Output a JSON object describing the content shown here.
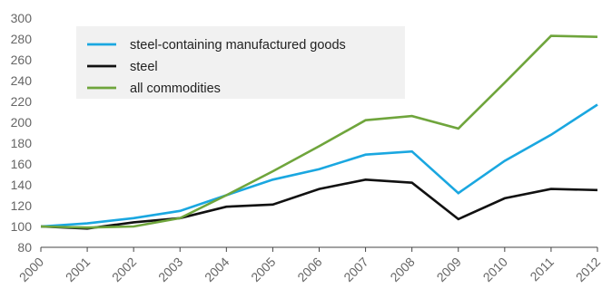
{
  "chart_data": {
    "type": "line",
    "title": "",
    "xlabel": "",
    "ylabel": "",
    "x": [
      "2000",
      "2001",
      "2002",
      "2003",
      "2004",
      "2005",
      "2006",
      "2007",
      "2008",
      "2009",
      "2010",
      "2011",
      "2012"
    ],
    "ylim": [
      80,
      300
    ],
    "yticks": [
      80,
      100,
      120,
      140,
      160,
      180,
      200,
      220,
      240,
      260,
      280,
      300
    ],
    "grid": false,
    "legend_position": "top-left",
    "series": [
      {
        "name": "steel-containing manufactured goods",
        "color": "#1aa7e0",
        "values": [
          100,
          103,
          108,
          115,
          130,
          145,
          155,
          169,
          172,
          132,
          163,
          188,
          217
        ]
      },
      {
        "name": "steel",
        "color": "#111111",
        "values": [
          100,
          98,
          104,
          108,
          119,
          121,
          136,
          145,
          142,
          107,
          127,
          136,
          135
        ]
      },
      {
        "name": "all commodities",
        "color": "#6fa53c",
        "values": [
          100,
          99,
          100,
          108,
          130,
          153,
          177,
          202,
          206,
          194,
          238,
          283,
          282
        ]
      }
    ]
  }
}
